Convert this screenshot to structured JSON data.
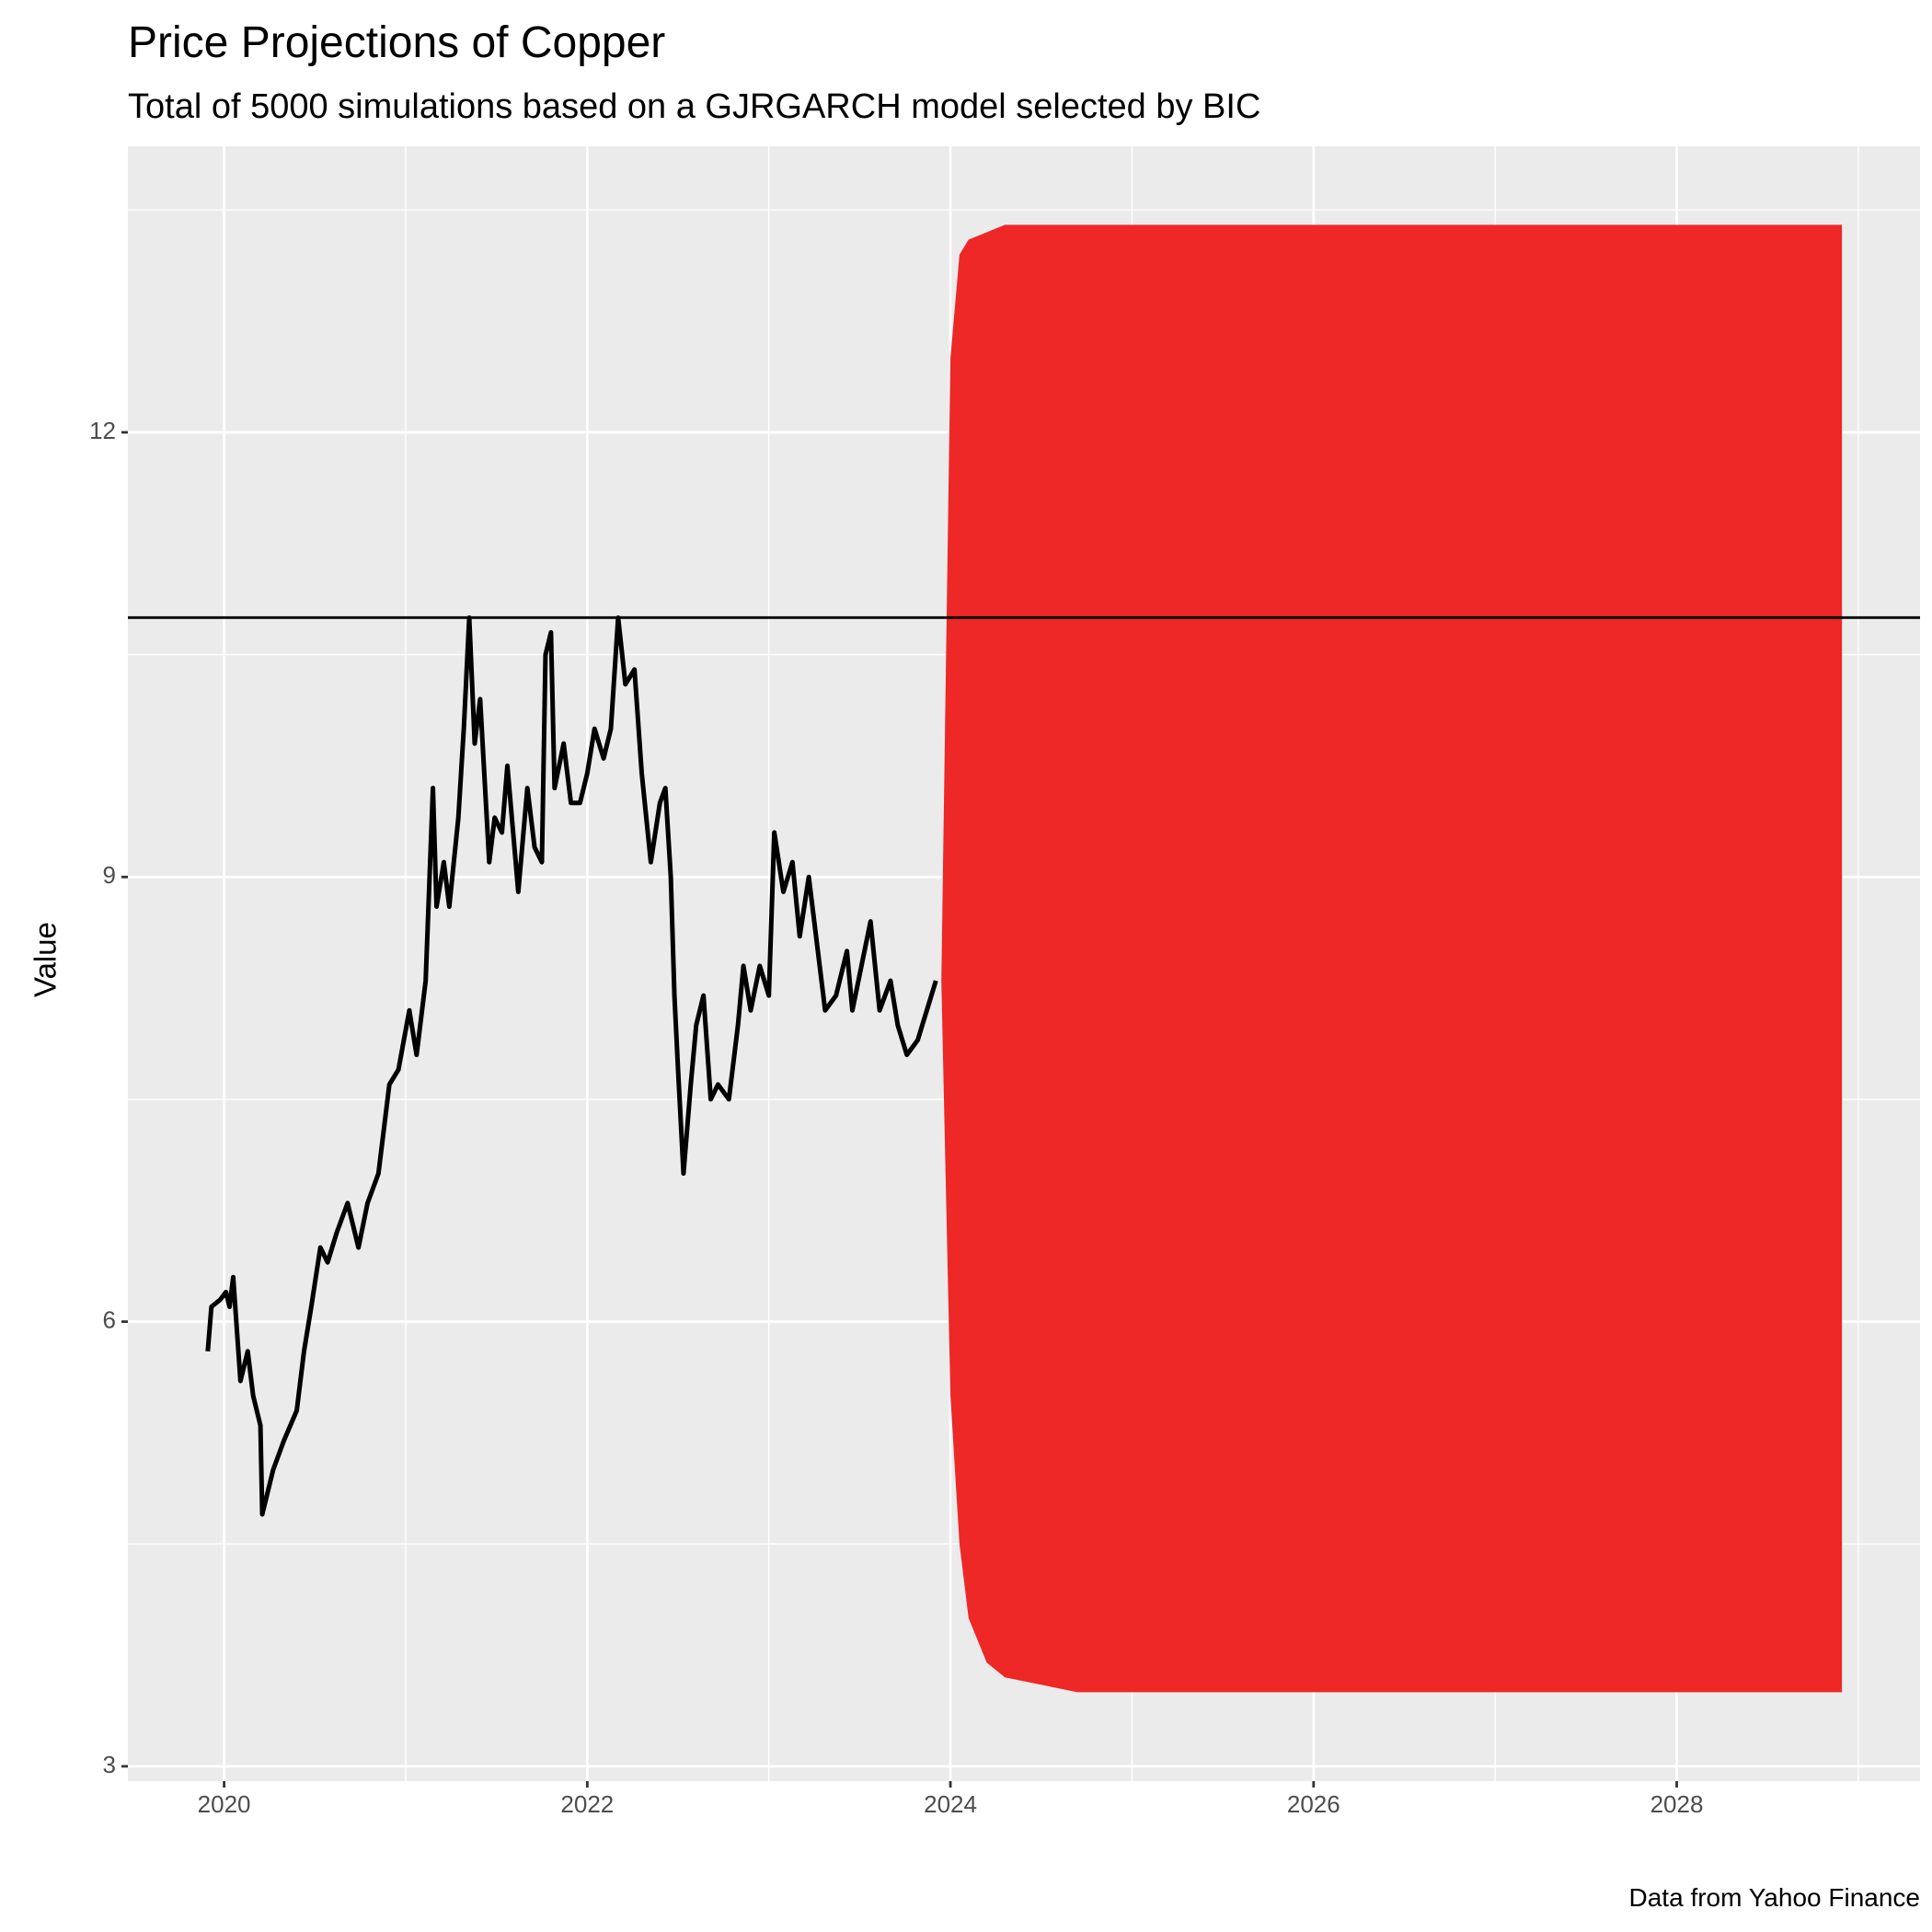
{
  "chart_data": {
    "type": "line",
    "title": "Price Projections of Copper",
    "subtitle": "Total of 5000 simulations based on a GJRGARCH model selected by BIC",
    "y_label": "Value",
    "caption": "Data from Yahoo Finance",
    "xlim": [
      2019.47,
      2029.34
    ],
    "xticks": [
      2020,
      2022,
      2024,
      2026,
      2028
    ],
    "x_minor_gridlines": [
      2021,
      2023,
      2025,
      2027,
      2029
    ],
    "ylim": [
      2.9,
      13.93
    ],
    "yticks": [
      3,
      6,
      9,
      12
    ],
    "y_minor_gridlines": [
      4.5,
      7.5,
      10.5,
      13.5
    ],
    "grid": true,
    "background": "#ebebeb",
    "band": {
      "color": "#ed2020",
      "x": [
        2023.95,
        2024.0,
        2024.05,
        2024.1,
        2024.2,
        2024.3,
        2024.5,
        2024.7,
        2025.0,
        2028.91
      ],
      "upper": [
        8.3,
        12.5,
        13.2,
        13.3,
        13.35,
        13.4,
        13.4,
        13.4,
        13.4,
        13.4
      ],
      "lower": [
        8.3,
        5.5,
        4.5,
        4.0,
        3.7,
        3.6,
        3.55,
        3.5,
        3.5,
        3.5
      ]
    },
    "hline": {
      "value": 10.75,
      "color": "#000000"
    },
    "series": [
      {
        "color": "#000000",
        "x": [
          2019.91,
          2019.93,
          2019.98,
          2020.01,
          2020.03,
          2020.05,
          2020.09,
          2020.13,
          2020.16,
          2020.2,
          2020.21,
          2020.27,
          2020.33,
          2020.4,
          2020.44,
          2020.48,
          2020.53,
          2020.57,
          2020.62,
          2020.68,
          2020.74,
          2020.79,
          2020.85,
          2020.91,
          2020.96,
          2021.02,
          2021.06,
          2021.11,
          2021.15,
          2021.17,
          2021.21,
          2021.24,
          2021.29,
          2021.32,
          2021.35,
          2021.38,
          2021.41,
          2021.46,
          2021.49,
          2021.53,
          2021.56,
          2021.62,
          2021.67,
          2021.71,
          2021.75,
          2021.77,
          2021.8,
          2021.82,
          2021.87,
          2021.91,
          2021.96,
          2022.0,
          2022.04,
          2022.09,
          2022.13,
          2022.17,
          2022.21,
          2022.26,
          2022.3,
          2022.35,
          2022.4,
          2022.43,
          2022.46,
          2022.48,
          2022.5,
          2022.53,
          2022.57,
          2022.6,
          2022.64,
          2022.68,
          2022.72,
          2022.78,
          2022.83,
          2022.86,
          2022.9,
          2022.95,
          2023.0,
          2023.03,
          2023.08,
          2023.13,
          2023.17,
          2023.22,
          2023.27,
          2023.31,
          2023.37,
          2023.43,
          2023.46,
          2023.51,
          2023.56,
          2023.61,
          2023.67,
          2023.71,
          2023.76,
          2023.82,
          2023.87,
          2023.92
        ],
        "values": [
          5.8,
          6.1,
          6.15,
          6.2,
          6.1,
          6.3,
          5.6,
          5.8,
          5.5,
          5.3,
          4.7,
          5.0,
          5.2,
          5.4,
          5.8,
          6.1,
          6.5,
          6.4,
          6.6,
          6.8,
          6.5,
          6.8,
          7.0,
          7.6,
          7.7,
          8.1,
          7.8,
          8.3,
          9.6,
          8.8,
          9.1,
          8.8,
          9.4,
          10.0,
          10.75,
          9.9,
          10.2,
          9.1,
          9.4,
          9.3,
          9.75,
          8.9,
          9.6,
          9.2,
          9.1,
          10.5,
          10.65,
          9.6,
          9.9,
          9.5,
          9.5,
          9.7,
          10.0,
          9.8,
          10.0,
          10.75,
          10.3,
          10.4,
          9.7,
          9.1,
          9.5,
          9.6,
          9.0,
          8.2,
          7.7,
          7.0,
          7.6,
          8.0,
          8.2,
          7.5,
          7.6,
          7.5,
          8.0,
          8.4,
          8.1,
          8.4,
          8.2,
          9.3,
          8.9,
          9.1,
          8.6,
          9.0,
          8.5,
          8.1,
          8.2,
          8.5,
          8.1,
          8.4,
          8.7,
          8.1,
          8.3,
          8.0,
          7.8,
          7.9,
          8.1,
          8.3
        ]
      }
    ]
  }
}
